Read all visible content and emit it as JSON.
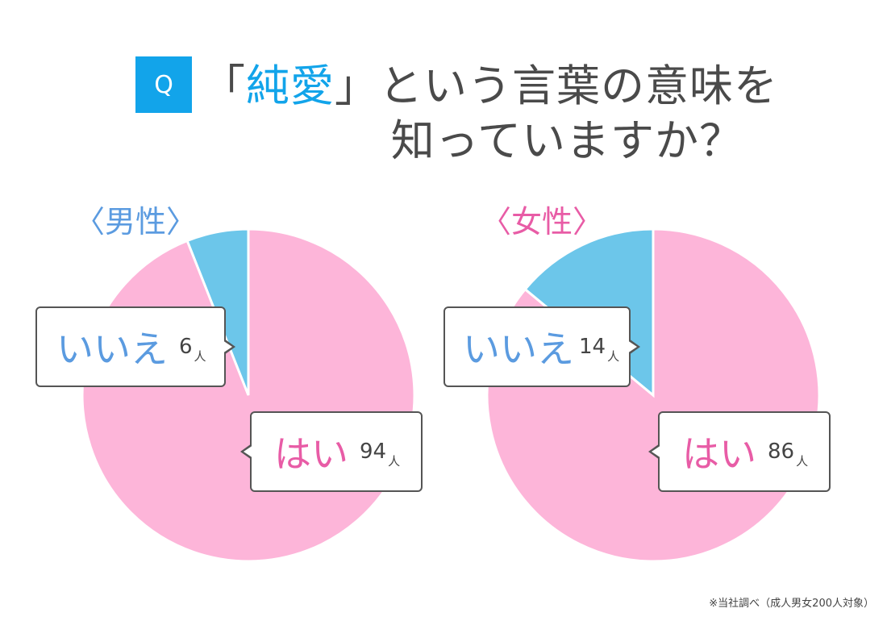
{
  "header": {
    "badge": "Q",
    "title_open": "「",
    "title_accent": "純愛",
    "title_close": "」",
    "title_rest": "という言葉の意味を",
    "title_line2": "知っていますか？"
  },
  "colors": {
    "accent_blue": "#12a4ea",
    "yes_pink": "#fdb5d9",
    "no_blue": "#6cc6ea",
    "male_label": "#5b9be0",
    "female_label": "#e85ca6",
    "yes_text": "#e85ca6",
    "no_text": "#5b9be0"
  },
  "male": {
    "label": "〈男性〉",
    "no_label": "いいえ",
    "no_value": "6",
    "yes_label": "はい",
    "yes_value": "94",
    "unit": "人"
  },
  "female": {
    "label": "〈女性〉",
    "no_label": "いいえ",
    "no_value": "14",
    "yes_label": "はい",
    "yes_value": "86",
    "unit": "人"
  },
  "footnote": "※当社調べ（成人男女200人対象）",
  "chart_data": [
    {
      "type": "pie",
      "title": "〈男性〉",
      "categories": [
        "はい",
        "いいえ"
      ],
      "values": [
        94,
        6
      ],
      "unit": "人",
      "colors": [
        "#fdb5d9",
        "#6cc6ea"
      ]
    },
    {
      "type": "pie",
      "title": "〈女性〉",
      "categories": [
        "はい",
        "いいえ"
      ],
      "values": [
        86,
        14
      ],
      "unit": "人",
      "colors": [
        "#fdb5d9",
        "#6cc6ea"
      ]
    }
  ]
}
